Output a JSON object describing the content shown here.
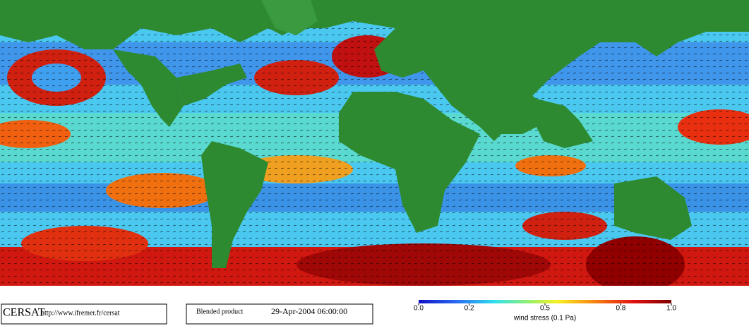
{
  "footer": {
    "logo": "CERSAT",
    "url": "http://www.ifremer.fr/cersat",
    "product": "Blended product",
    "date": "29-Apr-2004 06:00:00"
  },
  "colorbar": {
    "label": "wind stress (0.1 Pa)",
    "lim": [
      0,
      1
    ],
    "ticks": [
      {
        "value": 0,
        "label": "0.0"
      },
      0.2,
      0.5,
      0.8,
      {
        "value": 1,
        "label": "1.0"
      }
    ]
  }
}
